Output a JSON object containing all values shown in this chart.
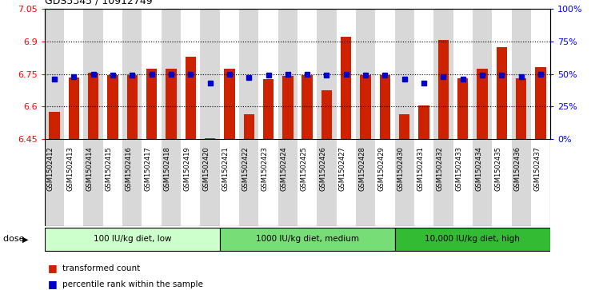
{
  "title": "GDS5345 / 10912749",
  "samples": [
    "GSM1502412",
    "GSM1502413",
    "GSM1502414",
    "GSM1502415",
    "GSM1502416",
    "GSM1502417",
    "GSM1502418",
    "GSM1502419",
    "GSM1502420",
    "GSM1502421",
    "GSM1502422",
    "GSM1502423",
    "GSM1502424",
    "GSM1502425",
    "GSM1502426",
    "GSM1502427",
    "GSM1502428",
    "GSM1502429",
    "GSM1502430",
    "GSM1502431",
    "GSM1502432",
    "GSM1502433",
    "GSM1502434",
    "GSM1502435",
    "GSM1502436",
    "GSM1502437"
  ],
  "bar_values": [
    6.575,
    6.735,
    6.755,
    6.745,
    6.745,
    6.775,
    6.775,
    6.83,
    6.455,
    6.775,
    6.565,
    6.725,
    6.74,
    6.745,
    6.675,
    6.92,
    6.745,
    6.745,
    6.565,
    6.605,
    6.905,
    6.73,
    6.775,
    6.875,
    6.73,
    6.78
  ],
  "percentile_values": [
    46,
    48,
    50,
    49,
    49,
    50,
    50,
    50,
    43,
    50,
    47,
    49,
    50,
    50,
    49,
    50,
    49,
    49,
    46,
    43,
    48,
    46,
    49,
    49,
    48,
    50
  ],
  "groups": [
    {
      "label": "100 IU/kg diet, low",
      "start": 0,
      "end": 8,
      "color": "#ccffcc"
    },
    {
      "label": "1000 IU/kg diet, medium",
      "start": 9,
      "end": 17,
      "color": "#77dd77"
    },
    {
      "label": "10,000 IU/kg diet, high",
      "start": 18,
      "end": 25,
      "color": "#33bb33"
    }
  ],
  "ylim": [
    6.45,
    7.05
  ],
  "yticks_left": [
    6.45,
    6.6,
    6.75,
    6.9,
    7.05
  ],
  "yticks_right": [
    0,
    25,
    50,
    75,
    100
  ],
  "bar_color": "#cc2200",
  "dot_color": "#0000cc",
  "bg_color": "#ffffff",
  "stripe_color": "#d8d8d8"
}
